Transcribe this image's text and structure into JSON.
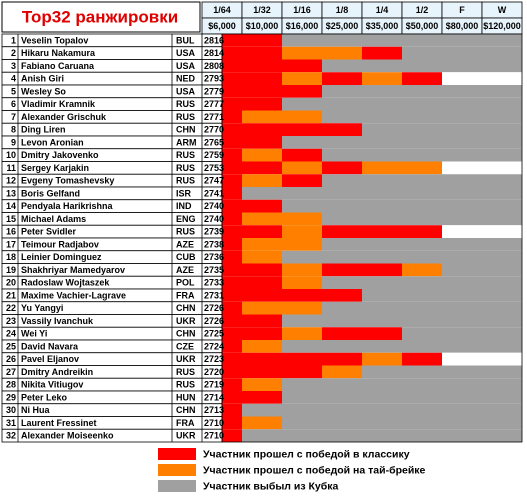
{
  "title": "Top32 ранжировки",
  "rounds": [
    {
      "name": "1/64",
      "prize": "$6,000"
    },
    {
      "name": "1/32",
      "prize": "$10,000"
    },
    {
      "name": "1/16",
      "prize": "$16,000"
    },
    {
      "name": "1/8",
      "prize": "$25,000"
    },
    {
      "name": "1/4",
      "prize": "$35,000"
    },
    {
      "name": "1/2",
      "prize": "$50,000"
    },
    {
      "name": "F",
      "prize": "$80,000"
    },
    {
      "name": "W",
      "prize": "$120,000"
    }
  ],
  "legend": [
    {
      "color": "#ff0000",
      "label": "Участник прошел с победой в классику"
    },
    {
      "color": "#ff8000",
      "label": "Участник прошел с победой на тай-брейке"
    },
    {
      "color": "#a0a0a0",
      "label": "Участник выбыл из Кубка"
    }
  ],
  "empty_color": "#ffffff",
  "players": [
    {
      "rank": "1",
      "name": "Veselin Topalov",
      "country": "BUL",
      "rating": "2816",
      "cells": [
        0,
        0,
        2,
        2,
        2,
        2,
        2,
        2
      ]
    },
    {
      "rank": "2",
      "name": "Hikaru Nakamura",
      "country": "USA",
      "rating": "2814",
      "cells": [
        0,
        0,
        1,
        1,
        0,
        2,
        2,
        2
      ]
    },
    {
      "rank": "3",
      "name": "Fabiano Caruana",
      "country": "USA",
      "rating": "2808",
      "cells": [
        0,
        0,
        0,
        2,
        2,
        2,
        2,
        2
      ]
    },
    {
      "rank": "4",
      "name": "Anish Giri",
      "country": "NED",
      "rating": "2793",
      "cells": [
        0,
        0,
        1,
        0,
        1,
        0,
        3,
        3
      ]
    },
    {
      "rank": "5",
      "name": "Wesley So",
      "country": "USA",
      "rating": "2779",
      "cells": [
        0,
        0,
        0,
        2,
        2,
        2,
        2,
        2
      ]
    },
    {
      "rank": "6",
      "name": "Vladimir Kramnik",
      "country": "RUS",
      "rating": "2777",
      "cells": [
        0,
        0,
        2,
        2,
        2,
        2,
        2,
        2
      ]
    },
    {
      "rank": "7",
      "name": "Alexander Grischuk",
      "country": "RUS",
      "rating": "2771",
      "cells": [
        0,
        1,
        1,
        2,
        2,
        2,
        2,
        2
      ]
    },
    {
      "rank": "8",
      "name": "Ding Liren",
      "country": "CHN",
      "rating": "2770",
      "cells": [
        0,
        0,
        0,
        0,
        2,
        2,
        2,
        2
      ]
    },
    {
      "rank": "9",
      "name": "Levon Aronian",
      "country": "ARM",
      "rating": "2765",
      "cells": [
        0,
        0,
        2,
        2,
        2,
        2,
        2,
        2
      ]
    },
    {
      "rank": "10",
      "name": "Dmitry Jakovenko",
      "country": "RUS",
      "rating": "2759",
      "cells": [
        0,
        1,
        0,
        2,
        2,
        2,
        2,
        2
      ]
    },
    {
      "rank": "11",
      "name": "Sergey Karjakin",
      "country": "RUS",
      "rating": "2753",
      "cells": [
        0,
        0,
        1,
        0,
        1,
        1,
        3,
        3
      ]
    },
    {
      "rank": "12",
      "name": "Evgeny Tomashevsky",
      "country": "RUS",
      "rating": "2747",
      "cells": [
        0,
        1,
        0,
        2,
        2,
        2,
        2,
        2
      ]
    },
    {
      "rank": "13",
      "name": "Boris Gelfand",
      "country": "ISR",
      "rating": "2741",
      "cells": [
        0,
        2,
        2,
        2,
        2,
        2,
        2,
        2
      ]
    },
    {
      "rank": "14",
      "name": "Pendyala Harikrishna",
      "country": "IND",
      "rating": "2740",
      "cells": [
        0,
        0,
        2,
        2,
        2,
        2,
        2,
        2
      ]
    },
    {
      "rank": "15",
      "name": "Michael Adams",
      "country": "ENG",
      "rating": "2740",
      "cells": [
        0,
        1,
        1,
        2,
        2,
        2,
        2,
        2
      ]
    },
    {
      "rank": "16",
      "name": "Peter Svidler",
      "country": "RUS",
      "rating": "2739",
      "cells": [
        0,
        0,
        1,
        0,
        0,
        0,
        3,
        3
      ]
    },
    {
      "rank": "17",
      "name": "Teimour Radjabov",
      "country": "AZE",
      "rating": "2738",
      "cells": [
        0,
        1,
        1,
        2,
        2,
        2,
        2,
        2
      ]
    },
    {
      "rank": "18",
      "name": "Leinier Dominguez",
      "country": "CUB",
      "rating": "2736",
      "cells": [
        0,
        1,
        2,
        2,
        2,
        2,
        2,
        2
      ]
    },
    {
      "rank": "19",
      "name": "Shakhriyar Mamedyarov",
      "country": "AZE",
      "rating": "2735",
      "cells": [
        0,
        0,
        1,
        0,
        0,
        1,
        2,
        2
      ]
    },
    {
      "rank": "20",
      "name": "Radoslaw Wojtaszek",
      "country": "POL",
      "rating": "2733",
      "cells": [
        0,
        0,
        1,
        2,
        2,
        2,
        2,
        2
      ]
    },
    {
      "rank": "21",
      "name": "Maxime Vachier-Lagrave",
      "country": "FRA",
      "rating": "2731",
      "cells": [
        0,
        0,
        0,
        0,
        2,
        2,
        2,
        2
      ]
    },
    {
      "rank": "22",
      "name": "Yu Yangyi",
      "country": "CHN",
      "rating": "2726",
      "cells": [
        0,
        1,
        1,
        2,
        2,
        2,
        2,
        2
      ]
    },
    {
      "rank": "23",
      "name": "Vassily Ivanchuk",
      "country": "UKR",
      "rating": "2726",
      "cells": [
        0,
        0,
        2,
        2,
        2,
        2,
        2,
        2
      ]
    },
    {
      "rank": "24",
      "name": "Wei Yi",
      "country": "CHN",
      "rating": "2725",
      "cells": [
        0,
        0,
        1,
        0,
        0,
        2,
        2,
        2
      ]
    },
    {
      "rank": "25",
      "name": "David Navara",
      "country": "CZE",
      "rating": "2724",
      "cells": [
        0,
        1,
        2,
        2,
        2,
        2,
        2,
        2
      ]
    },
    {
      "rank": "26",
      "name": "Pavel Eljanov",
      "country": "UKR",
      "rating": "2723",
      "cells": [
        0,
        0,
        0,
        0,
        1,
        0,
        3,
        3
      ]
    },
    {
      "rank": "27",
      "name": "Dmitry Andreikin",
      "country": "RUS",
      "rating": "2720",
      "cells": [
        0,
        0,
        0,
        1,
        2,
        2,
        2,
        2
      ]
    },
    {
      "rank": "28",
      "name": "Nikita Vitiugov",
      "country": "RUS",
      "rating": "2719",
      "cells": [
        0,
        1,
        2,
        2,
        2,
        2,
        2,
        2
      ]
    },
    {
      "rank": "29",
      "name": "Peter Leko",
      "country": "HUN",
      "rating": "2714",
      "cells": [
        0,
        0,
        2,
        2,
        2,
        2,
        2,
        2
      ]
    },
    {
      "rank": "30",
      "name": "Ni Hua",
      "country": "CHN",
      "rating": "2713",
      "cells": [
        0,
        2,
        2,
        2,
        2,
        2,
        2,
        2
      ]
    },
    {
      "rank": "31",
      "name": "Laurent Fressinet",
      "country": "FRA",
      "rating": "2710",
      "cells": [
        0,
        1,
        2,
        2,
        2,
        2,
        2,
        2
      ]
    },
    {
      "rank": "32",
      "name": "Alexander Moiseenko",
      "country": "UKR",
      "rating": "2710",
      "cells": [
        0,
        2,
        2,
        2,
        2,
        2,
        2,
        2
      ]
    }
  ]
}
